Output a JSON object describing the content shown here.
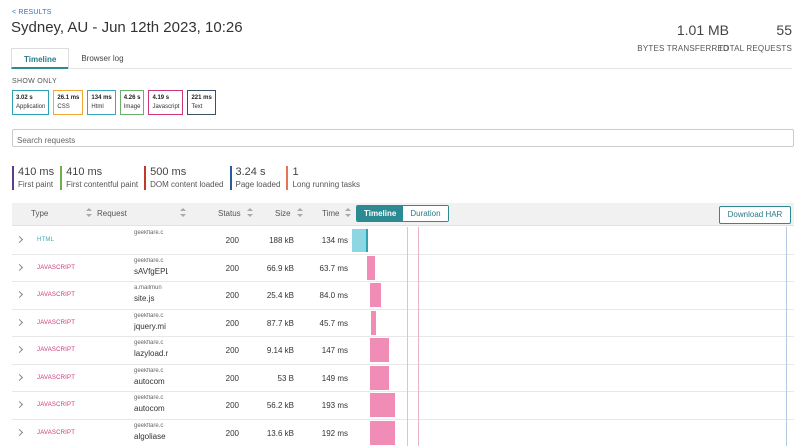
{
  "header": {
    "back_link": "< RESULTS",
    "title": "Sydney, AU - Jun 12th 2023, 10:26",
    "bytes_transferred": {
      "value": "1.01 MB",
      "label": "BYTES TRANSFERRED"
    },
    "total_requests": {
      "value": "55",
      "label": "TOTAL REQUESTS"
    }
  },
  "tabs": [
    {
      "label": "Timeline",
      "active": true
    },
    {
      "label": "Browser log",
      "active": false
    }
  ],
  "filters": {
    "heading": "SHOW ONLY",
    "chips": [
      {
        "value": "3.02 s",
        "label": "Application",
        "color": "#2aa4b5"
      },
      {
        "value": "26.1 ms",
        "label": "CSS",
        "color": "#f0a830"
      },
      {
        "value": "134 ms",
        "label": "Html",
        "color": "#3aa6b9"
      },
      {
        "value": "4.26 s",
        "label": "Image",
        "color": "#6ab06a"
      },
      {
        "value": "4.19 s",
        "label": "Javascript",
        "color": "#d0357a"
      },
      {
        "value": "221 ms",
        "label": "Text",
        "color": "#3d4f66"
      }
    ]
  },
  "search": {
    "placeholder": "Search requests"
  },
  "metrics": [
    {
      "value": "410 ms",
      "label": "First paint",
      "color": "#5a3c8c"
    },
    {
      "value": "410 ms",
      "label": "First contentful paint",
      "color": "#6ab04c"
    },
    {
      "value": "500 ms",
      "label": "DOM content loaded",
      "color": "#c0392b"
    },
    {
      "value": "3.24 s",
      "label": "Page loaded",
      "color": "#2c5aa0"
    },
    {
      "value": "1",
      "label": "Long running tasks",
      "color": "#e8735a"
    }
  ],
  "table": {
    "columns": {
      "type": "Type",
      "request": "Request",
      "status": "Status",
      "size": "Size",
      "time": "Time"
    },
    "view_toggle": {
      "timeline": "Timeline",
      "duration": "Duration"
    },
    "download_label": "Download HAR",
    "rows": [
      {
        "type": "HTML",
        "host": "geekflare.c",
        "file": "",
        "status": "200",
        "size": "188 kB",
        "time": "134 ms"
      },
      {
        "type": "JAVASCRIPT",
        "host": "geekflare.c",
        "file": "sAVfgEPL",
        "status": "200",
        "size": "66.9 kB",
        "time": "63.7 ms"
      },
      {
        "type": "JAVASCRIPT",
        "host": "a.mailmun",
        "file": "site.js",
        "status": "200",
        "size": "25.4 kB",
        "time": "84.0 ms"
      },
      {
        "type": "JAVASCRIPT",
        "host": "geekflare.c",
        "file": "jquery.mi",
        "status": "200",
        "size": "87.7 kB",
        "time": "45.7 ms"
      },
      {
        "type": "JAVASCRIPT",
        "host": "geekflare.c",
        "file": "lazyload.r",
        "status": "200",
        "size": "9.14 kB",
        "time": "147 ms"
      },
      {
        "type": "JAVASCRIPT",
        "host": "geekflare.c",
        "file": "autocom",
        "status": "200",
        "size": "53 B",
        "time": "149 ms"
      },
      {
        "type": "JAVASCRIPT",
        "host": "geekflare.c",
        "file": "autocom",
        "status": "200",
        "size": "56.2 kB",
        "time": "193 ms"
      },
      {
        "type": "JAVASCRIPT",
        "host": "geekflare.c",
        "file": "algoliase",
        "status": "200",
        "size": "13.6 kB",
        "time": "192 ms"
      }
    ]
  },
  "colors": {
    "accent": "#2b8a92",
    "html": "#3aa6b9",
    "javascript": "#d0357a",
    "js_bar": "#f08cb6",
    "html_bar": "#8dd6e3"
  }
}
